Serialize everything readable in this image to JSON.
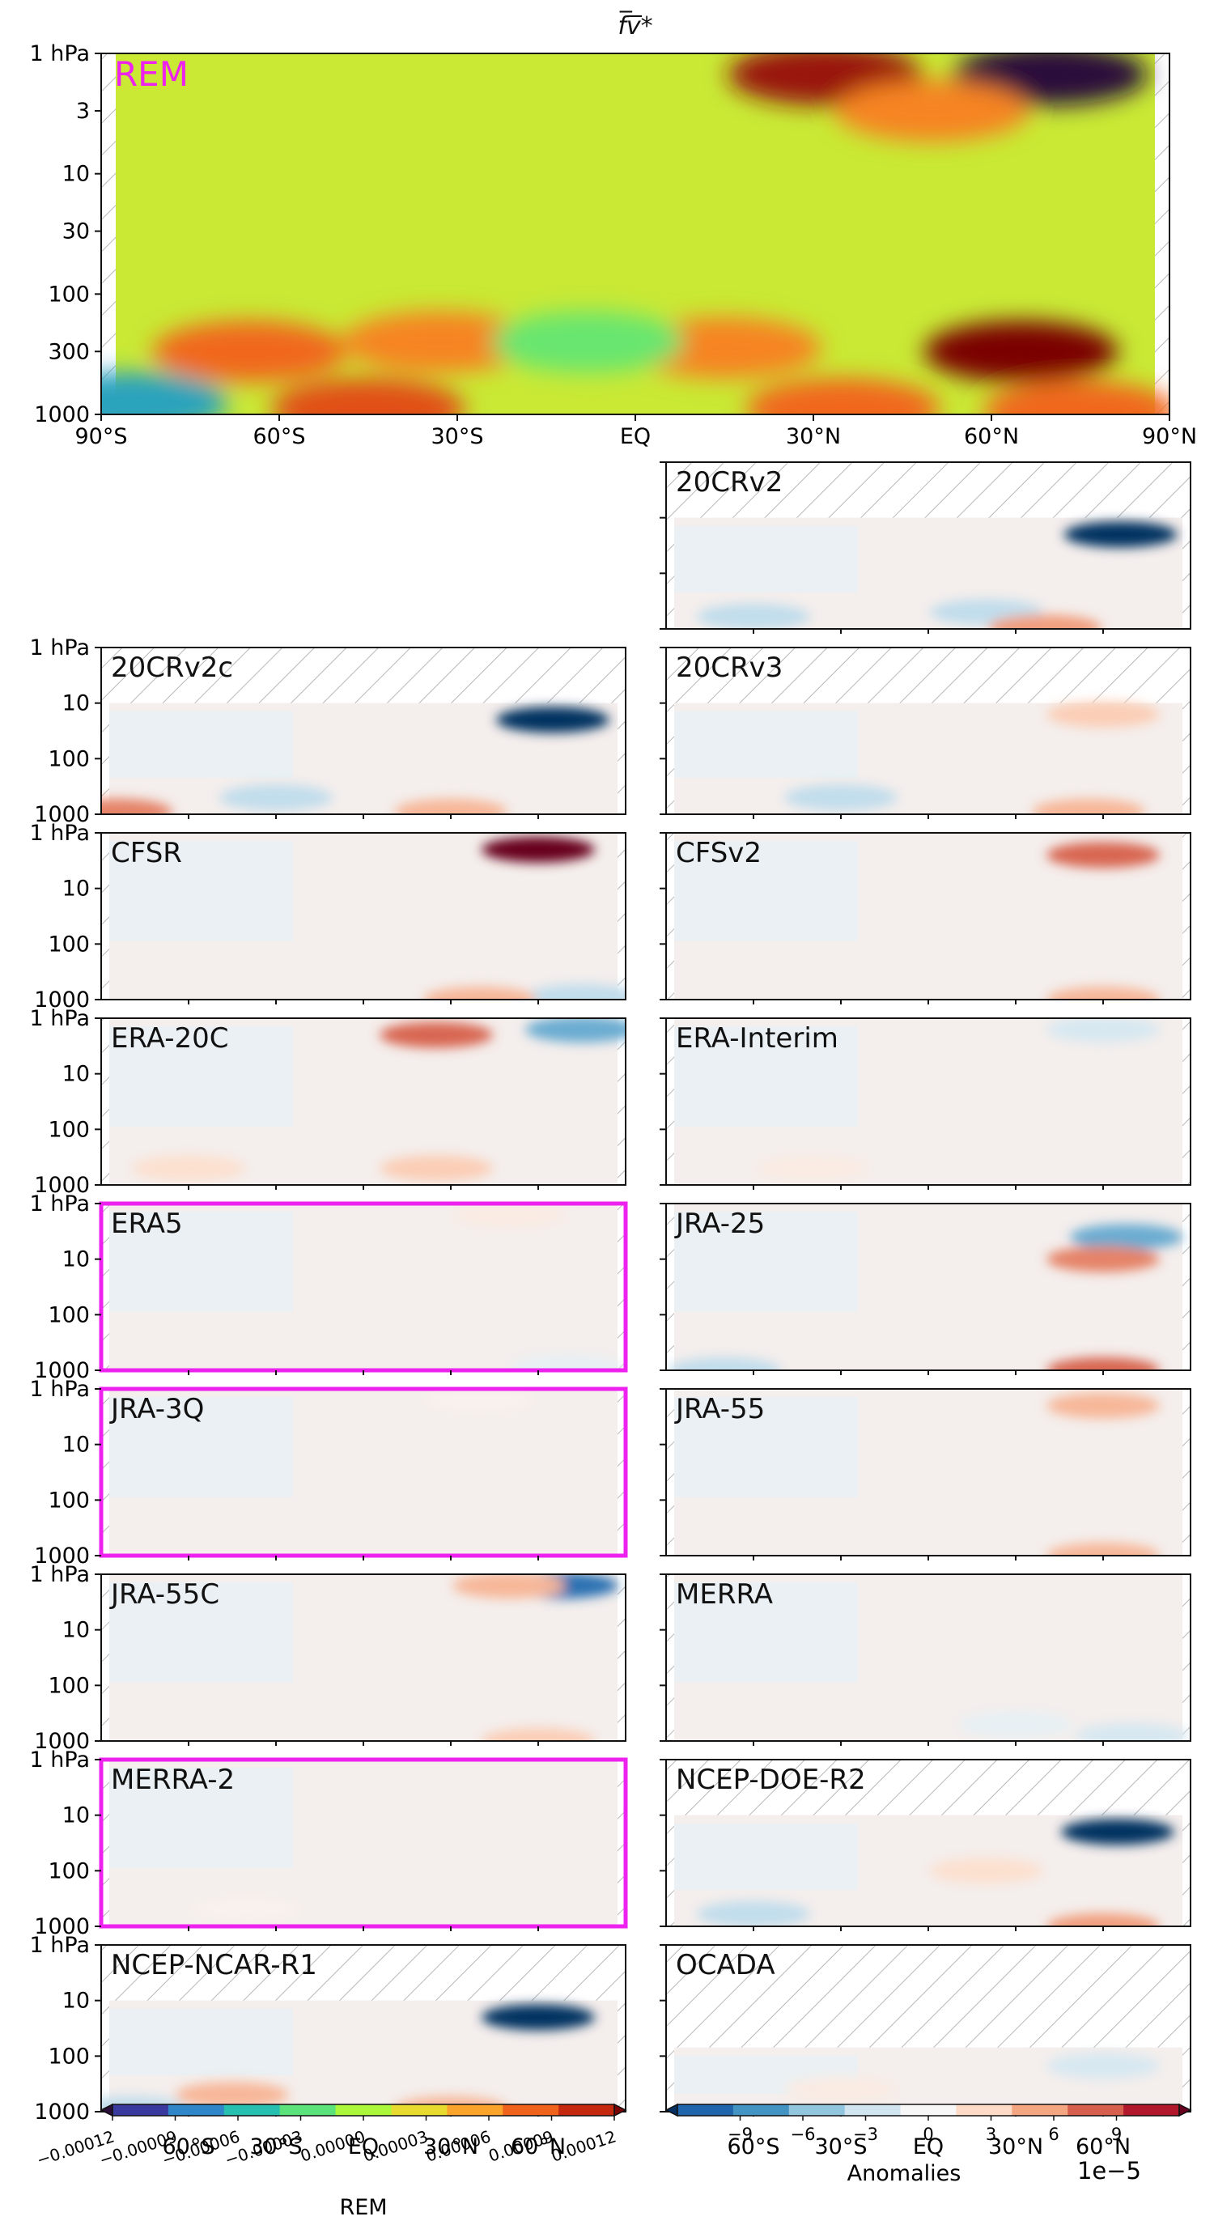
{
  "chart_data": {
    "type": "heatmap",
    "title": "f̅v̅*",
    "main_panel": {
      "label": "REM",
      "y_ticks": [
        "1 hPa",
        "3",
        "10",
        "30",
        "100",
        "300",
        "1000"
      ],
      "x_ticks": [
        "90°S",
        "60°S",
        "30°S",
        "EQ",
        "30°N",
        "60°N",
        "90°N"
      ],
      "features": [
        {
          "lat": 70,
          "p": 1.5,
          "value": -0.00012
        },
        {
          "lat": 32,
          "p": 1.5,
          "value": 0.00011
        },
        {
          "lat": 50,
          "p": 3,
          "value": 6e-05
        },
        {
          "lat": 65,
          "p": 300,
          "value": 0.00012
        },
        {
          "lat": 15,
          "p": 280,
          "value": 6e-05
        },
        {
          "lat": -65,
          "p": 300,
          "value": 7e-05
        },
        {
          "lat": -33,
          "p": 250,
          "value": 6e-05
        },
        {
          "lat": -45,
          "p": 900,
          "value": 8e-05
        },
        {
          "lat": 35,
          "p": 900,
          "value": 7e-05
        },
        {
          "lat": 75,
          "p": 950,
          "value": 7e-05
        },
        {
          "lat": -85,
          "p": 800,
          "value": -6e-05
        },
        {
          "lat": -8,
          "p": 250,
          "value": -2e-05
        }
      ]
    },
    "small_y_ticks": [
      "1 hPa",
      "10",
      "100",
      "1000"
    ],
    "small_x_ticks": [
      "60°S",
      "30°S",
      "EQ",
      "30°N",
      "60°N"
    ],
    "panels": [
      {
        "name": "20CRv2",
        "top_p": 10,
        "highlighted": false,
        "features": [
          {
            "lat": 66,
            "p": 20,
            "value": -0.00012
          },
          {
            "lat": 20,
            "p": 500,
            "value": -3e-05
          },
          {
            "lat": -60,
            "p": 600,
            "value": -3e-05
          },
          {
            "lat": 40,
            "p": 950,
            "value": 5e-05
          }
        ]
      },
      {
        "name": "20CRv2c",
        "top_p": 10,
        "highlighted": false,
        "features": [
          {
            "lat": 65,
            "p": 20,
            "value": -0.00012
          },
          {
            "lat": -30,
            "p": 500,
            "value": -3e-05
          },
          {
            "lat": 30,
            "p": 900,
            "value": 4e-05
          },
          {
            "lat": -85,
            "p": 900,
            "value": 6e-05
          }
        ]
      },
      {
        "name": "20CRv3",
        "top_p": 10,
        "highlighted": false,
        "features": [
          {
            "lat": 60,
            "p": 12,
            "value": 3e-05
          },
          {
            "lat": -30,
            "p": 500,
            "value": -3e-05
          },
          {
            "lat": 55,
            "p": 900,
            "value": 4e-05
          }
        ]
      },
      {
        "name": "CFSR",
        "top_p": 1,
        "highlighted": false,
        "features": [
          {
            "lat": 60,
            "p": 2,
            "value": 0.00012
          },
          {
            "lat": 75,
            "p": 900,
            "value": -3e-05
          },
          {
            "lat": 40,
            "p": 1000,
            "value": 4e-05
          }
        ]
      },
      {
        "name": "CFSv2",
        "top_p": 1,
        "highlighted": false,
        "features": [
          {
            "lat": 60,
            "p": 2.5,
            "value": 7e-05
          },
          {
            "lat": 60,
            "p": 1000,
            "value": 4e-05
          }
        ]
      },
      {
        "name": "ERA-20C",
        "top_p": 1,
        "highlighted": false,
        "features": [
          {
            "lat": 25,
            "p": 2,
            "value": 7e-05
          },
          {
            "lat": 75,
            "p": 1.5,
            "value": -6e-05
          },
          {
            "lat": 25,
            "p": 500,
            "value": 3e-05
          },
          {
            "lat": -60,
            "p": 500,
            "value": 2e-05
          }
        ]
      },
      {
        "name": "ERA-Interim",
        "top_p": 1,
        "highlighted": false,
        "features": [
          {
            "lat": 60,
            "p": 1,
            "value": -2e-05
          },
          {
            "lat": -40,
            "p": 500,
            "value": 1e-05
          }
        ]
      },
      {
        "name": "ERA5",
        "top_p": 1,
        "highlighted": true,
        "features": [
          {
            "lat": 50,
            "p": 1.5,
            "value": 1e-05
          },
          {
            "lat": 70,
            "p": 900,
            "value": -1e-05
          }
        ]
      },
      {
        "name": "JRA-25",
        "top_p": 1,
        "highlighted": false,
        "features": [
          {
            "lat": 68,
            "p": 4,
            "value": -6e-05
          },
          {
            "lat": 60,
            "p": 10,
            "value": 6e-05
          },
          {
            "lat": 60,
            "p": 1000,
            "value": 7e-05
          },
          {
            "lat": -70,
            "p": 1000,
            "value": -3e-05
          }
        ]
      },
      {
        "name": "JRA-3Q",
        "top_p": 1,
        "highlighted": true,
        "features": [
          {
            "lat": 40,
            "p": 1.5,
            "value": 5e-06
          }
        ]
      },
      {
        "name": "JRA-55",
        "top_p": 1,
        "highlighted": false,
        "features": [
          {
            "lat": 60,
            "p": 2,
            "value": 4e-05
          },
          {
            "lat": 60,
            "p": 1000,
            "value": 4e-05
          }
        ]
      },
      {
        "name": "JRA-55C",
        "top_p": 1,
        "highlighted": false,
        "features": [
          {
            "lat": 68,
            "p": 1.5,
            "value": -9e-05
          },
          {
            "lat": 50,
            "p": 1.2,
            "value": 4e-05
          },
          {
            "lat": 60,
            "p": 1000,
            "value": 3e-05
          }
        ]
      },
      {
        "name": "MERRA",
        "top_p": 1,
        "highlighted": false,
        "features": [
          {
            "lat": 30,
            "p": 500,
            "value": -1e-05
          },
          {
            "lat": 70,
            "p": 800,
            "value": -2e-05
          }
        ]
      },
      {
        "name": "MERRA-2",
        "top_p": 1,
        "highlighted": true,
        "features": [
          {
            "lat": -40,
            "p": 500,
            "value": 5e-06
          }
        ]
      },
      {
        "name": "NCEP-DOE-R2",
        "top_p": 10,
        "highlighted": false,
        "features": [
          {
            "lat": 65,
            "p": 20,
            "value": -0.00012
          },
          {
            "lat": 20,
            "p": 100,
            "value": 2e-05
          },
          {
            "lat": -60,
            "p": 600,
            "value": -3e-05
          },
          {
            "lat": 60,
            "p": 1000,
            "value": 5e-05
          }
        ]
      },
      {
        "name": "NCEP-NCAR-R1",
        "top_p": 10,
        "highlighted": false,
        "features": [
          {
            "lat": 60,
            "p": 20,
            "value": -0.00012
          },
          {
            "lat": -45,
            "p": 500,
            "value": 4e-05
          },
          {
            "lat": 30,
            "p": 900,
            "value": 4e-05
          },
          {
            "lat": -80,
            "p": 900,
            "value": -3e-05
          }
        ]
      },
      {
        "name": "OCADA",
        "top_p": 70,
        "highlighted": false,
        "features": [
          {
            "lat": 60,
            "p": 150,
            "value": -2e-05
          },
          {
            "lat": -30,
            "p": 400,
            "value": 1e-05
          }
        ]
      }
    ],
    "colorbar_rem": {
      "label": "REM",
      "ticks": [
        "−0.00012",
        "−0.00009",
        "−0.00006",
        "−0.00003",
        "0.00000",
        "0.00003",
        "0.00006",
        "0.00009",
        "0.00012"
      ],
      "colors": [
        "#2a0f3b",
        "#3a3a9e",
        "#2f86c9",
        "#27c0b0",
        "#5be27b",
        "#aaf73c",
        "#e8da2e",
        "#fba42b",
        "#f0631c",
        "#c4290f",
        "#7a0403"
      ]
    },
    "colorbar_anomalies": {
      "label": "Anomalies",
      "offset": "1e−5",
      "ticks": [
        "−9",
        "−6",
        "−3",
        "0",
        "3",
        "6",
        "9"
      ],
      "colors": [
        "#053061",
        "#2166ac",
        "#4393c3",
        "#92c5de",
        "#d1e5f0",
        "#f7f7f7",
        "#fddbc7",
        "#f4a582",
        "#d6604d",
        "#b2182b",
        "#67001f"
      ]
    }
  }
}
